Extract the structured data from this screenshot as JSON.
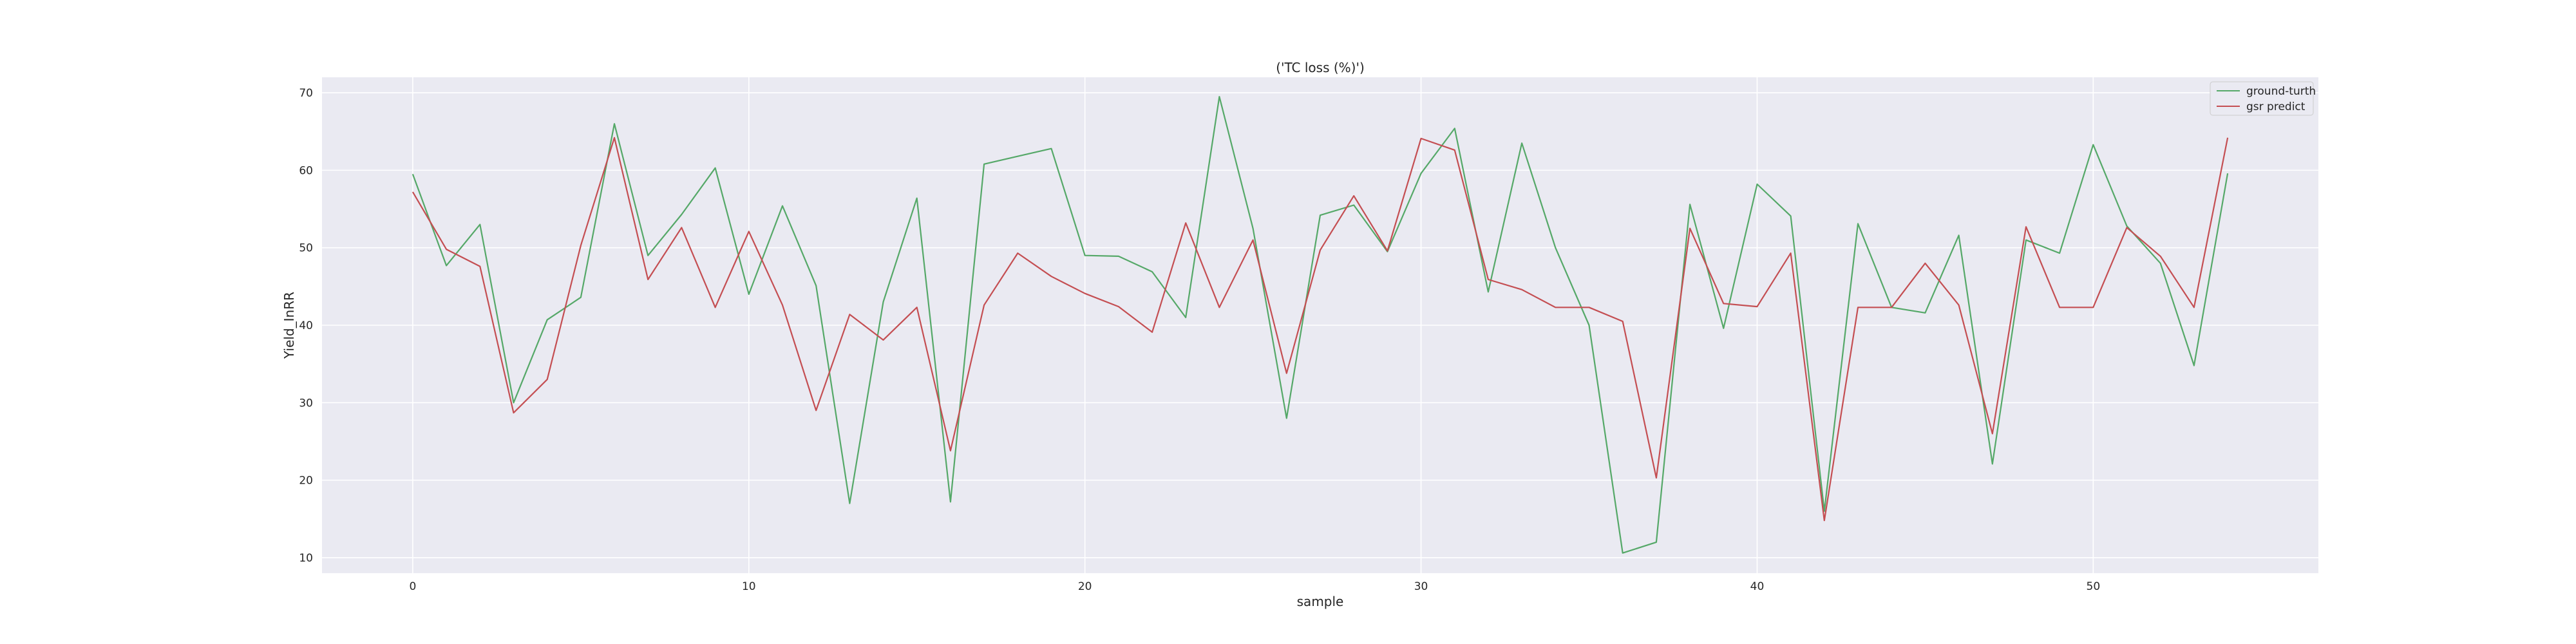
{
  "chart_data": {
    "type": "line",
    "title": "('TC loss (%)')",
    "xlabel": "sample",
    "ylabel": "Yield_InRR",
    "xlim": [
      -2.7,
      56.7
    ],
    "ylim": [
      8,
      72
    ],
    "xticks": [
      0,
      10,
      20,
      30,
      40,
      50
    ],
    "yticks": [
      10,
      20,
      30,
      40,
      50,
      60,
      70
    ],
    "grid": true,
    "legend_position": "top-right",
    "x": [
      0,
      1,
      2,
      3,
      4,
      5,
      6,
      7,
      8,
      9,
      10,
      11,
      12,
      13,
      14,
      15,
      16,
      17,
      18,
      19,
      20,
      21,
      22,
      23,
      24,
      25,
      26,
      27,
      28,
      29,
      30,
      31,
      32,
      33,
      34,
      35,
      36,
      37,
      38,
      39,
      40,
      41,
      42,
      43,
      44,
      45,
      46,
      47,
      48,
      49,
      50,
      51,
      52,
      53,
      54
    ],
    "series": [
      {
        "name": "ground-turth",
        "color": "#55a868",
        "values": [
          59.5,
          47.7,
          53,
          30,
          40.7,
          43.6,
          66,
          49,
          54.3,
          60.3,
          44,
          55.4,
          45.1,
          17,
          43,
          56.4,
          17.2,
          60.8,
          61.8,
          62.8,
          49,
          48.9,
          46.9,
          41,
          69.5,
          52.5,
          28,
          54.2,
          55.5,
          49.5,
          59.6,
          65.4,
          44.3,
          63.5,
          50,
          40,
          10.6,
          12,
          55.6,
          39.6,
          58.2,
          54.1,
          16,
          53.1,
          42.3,
          41.6,
          51.6,
          22.1,
          51,
          49.3,
          63.3,
          52.8,
          48,
          34.8,
          59.6
        ]
      },
      {
        "name": "gsr predict",
        "color": "#c44e52",
        "values": [
          57.2,
          49.8,
          47.6,
          28.7,
          33,
          50.3,
          64.2,
          45.9,
          52.6,
          42.3,
          52.1,
          42.6,
          29,
          41.4,
          38.1,
          42.3,
          23.8,
          42.6,
          49.3,
          46.3,
          44.1,
          42.4,
          39.1,
          53.2,
          42.3,
          51,
          33.8,
          49.7,
          56.7,
          49.6,
          64.1,
          62.6,
          45.9,
          44.6,
          42.3,
          42.3,
          40.5,
          20.3,
          52.5,
          42.8,
          42.4,
          49.3,
          14.8,
          42.3,
          42.3,
          48,
          42.6,
          26,
          52.7,
          42.3,
          42.3,
          52.6,
          48.9,
          42.3,
          64.2
        ]
      }
    ]
  }
}
